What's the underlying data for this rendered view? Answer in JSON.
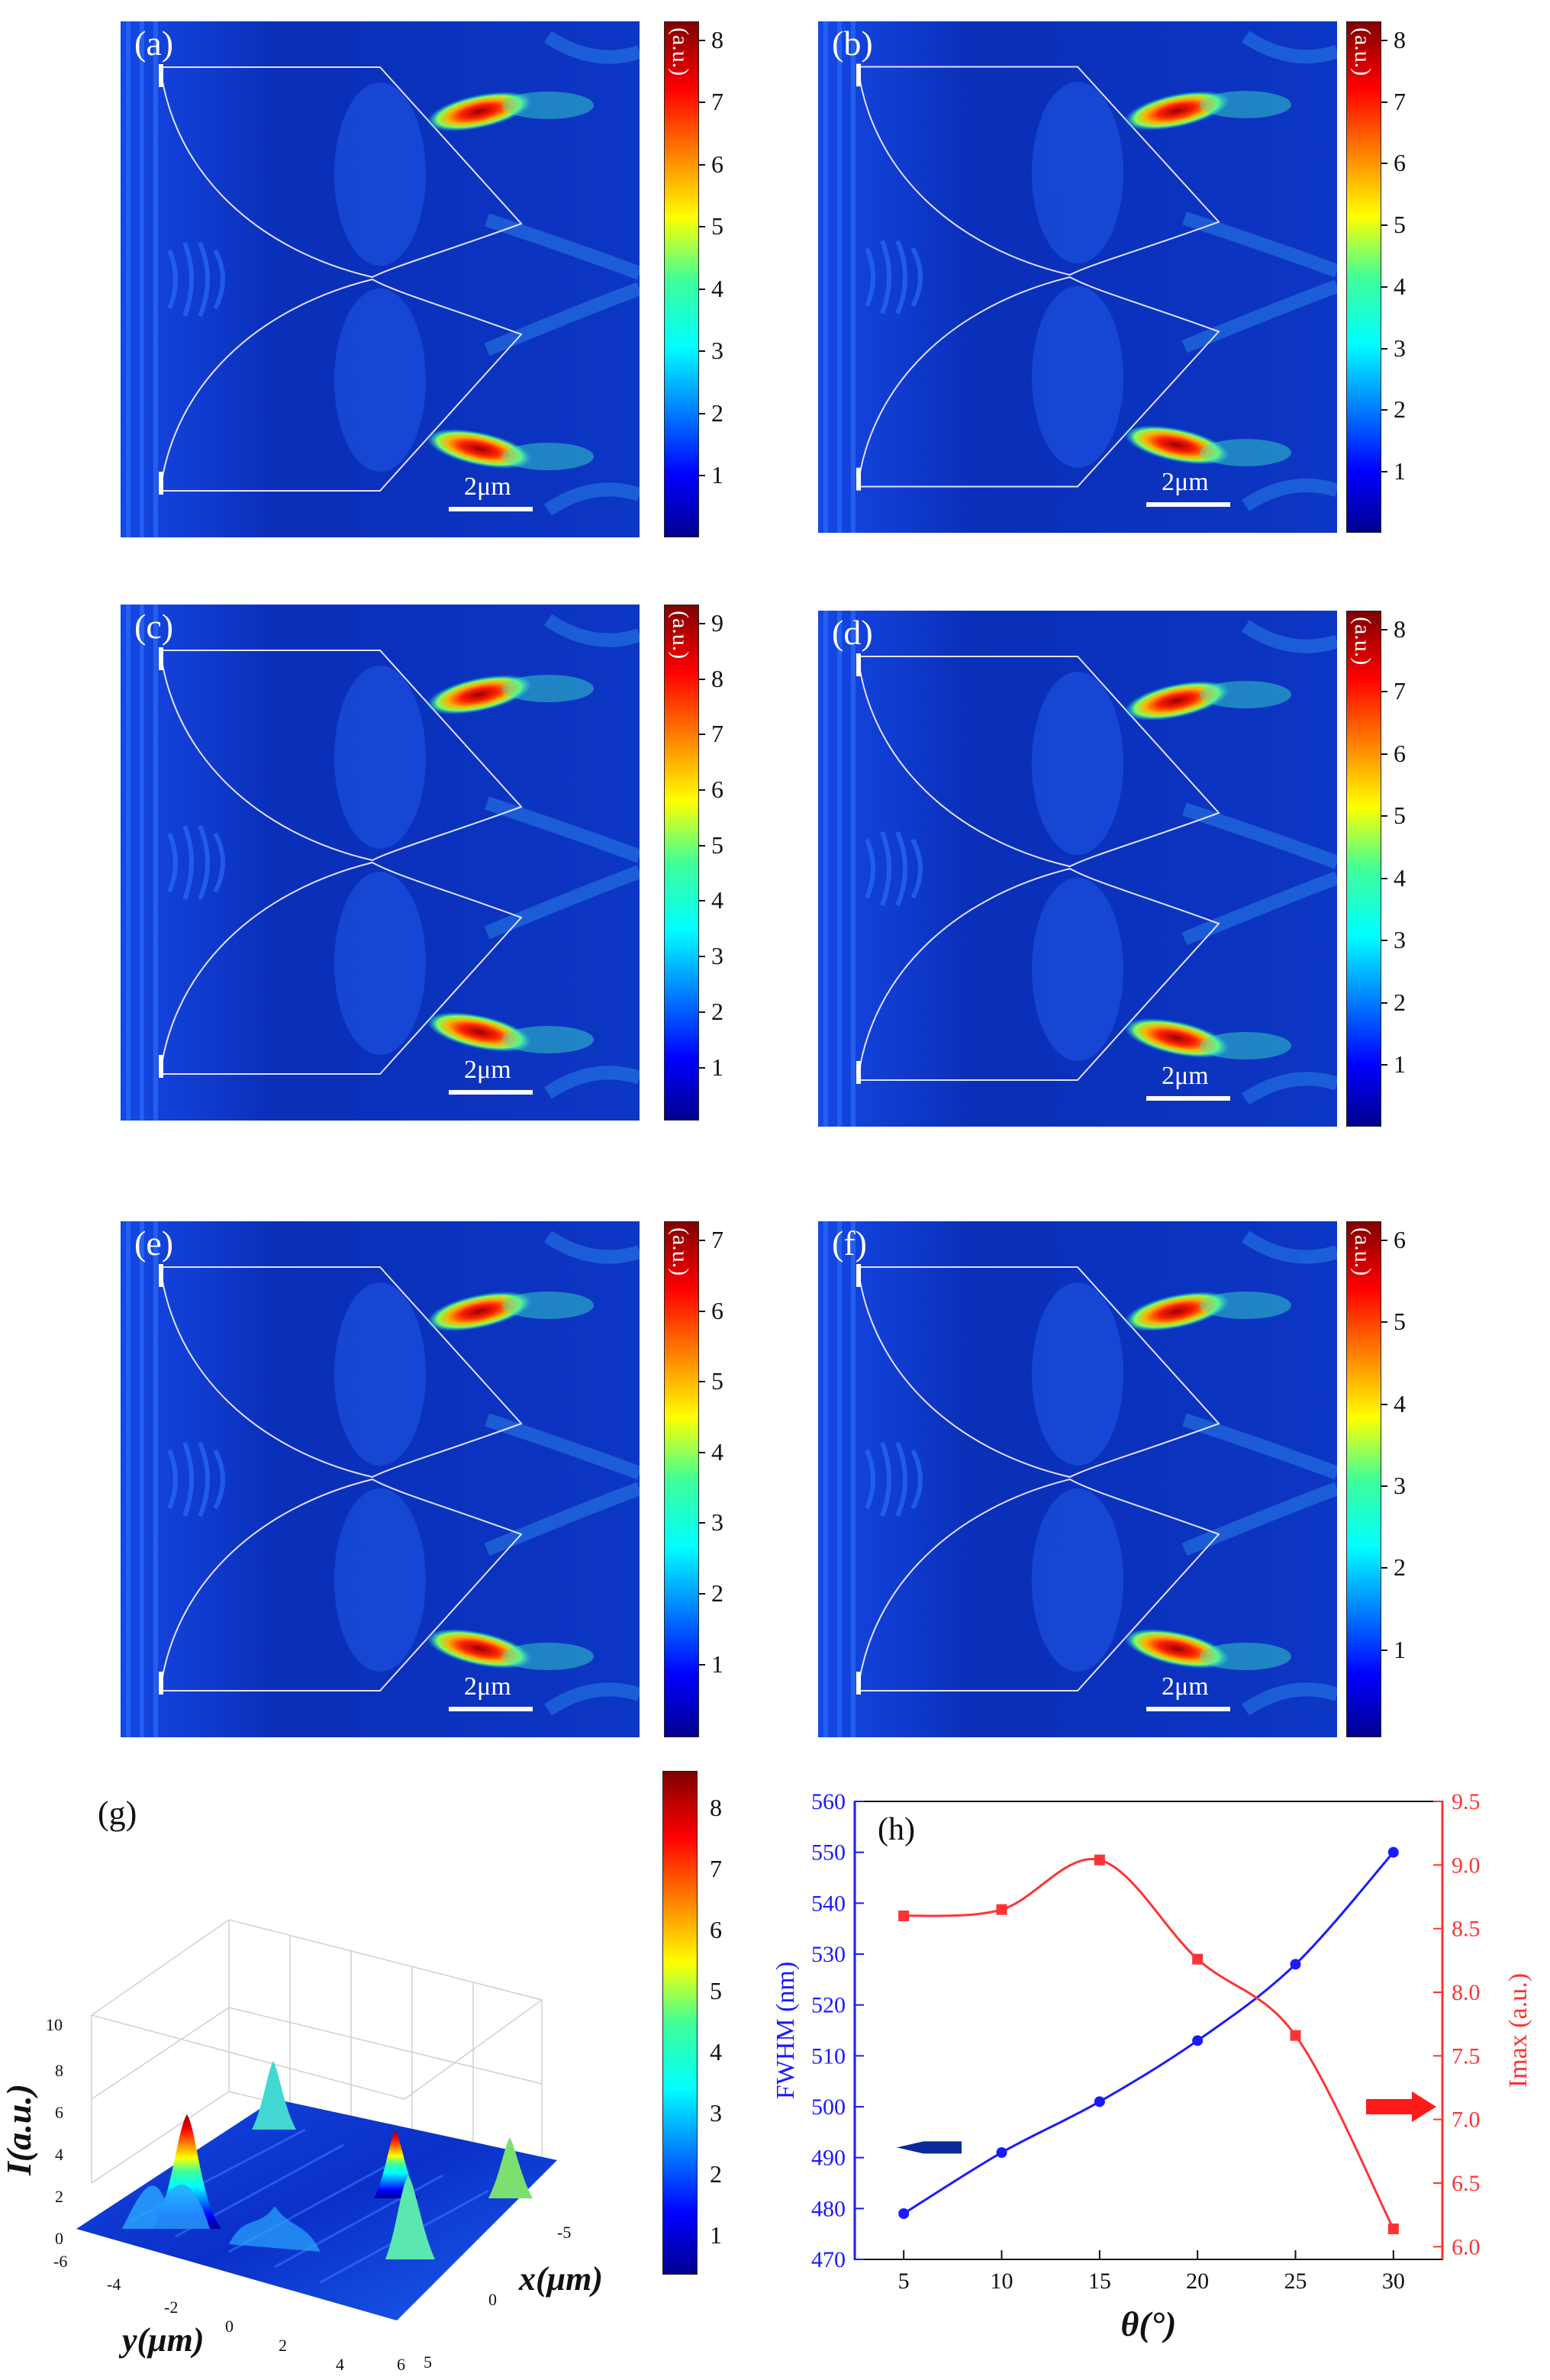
{
  "colorbar_unit": "(a.u.)",
  "scale_bar": "2μm",
  "panels": [
    {
      "label": "(a)",
      "cbar_ticks": [
        "8",
        "7",
        "6",
        "5",
        "4",
        "3",
        "2",
        "1"
      ]
    },
    {
      "label": "(b)",
      "cbar_ticks": [
        "8",
        "7",
        "6",
        "5",
        "4",
        "3",
        "2",
        "1"
      ]
    },
    {
      "label": "(c)",
      "cbar_ticks": [
        "9",
        "8",
        "7",
        "6",
        "5",
        "4",
        "3",
        "2",
        "1"
      ]
    },
    {
      "label": "(d)",
      "cbar_ticks": [
        "8",
        "7",
        "6",
        "5",
        "4",
        "3",
        "2",
        "1"
      ]
    },
    {
      "label": "(e)",
      "cbar_ticks": [
        "7",
        "6",
        "5",
        "4",
        "3",
        "2",
        "1"
      ]
    },
    {
      "label": "(f)",
      "cbar_ticks": [
        "6",
        "5",
        "4",
        "3",
        "2",
        "1"
      ]
    }
  ],
  "panel_g": {
    "label": "(g)",
    "zlabel": "I(a.u.)",
    "xlabel": "x(μm)",
    "ylabel": "y(μm)",
    "z_ticks": [
      "10",
      "8",
      "6",
      "4",
      "2",
      "0"
    ],
    "y_ticks": [
      "-6",
      "-4",
      "-2",
      "0",
      "2",
      "4",
      "6"
    ],
    "x_ticks": [
      "-5",
      "0",
      "5"
    ],
    "cbar_ticks": [
      "8",
      "7",
      "6",
      "5",
      "4",
      "3",
      "2",
      "1"
    ]
  },
  "chart_data": {
    "type": "line",
    "label": "(h)",
    "xlabel": "θ(°)",
    "ylabel_left": "FWHM (nm)",
    "ylabel_right": "Imax (a.u.)",
    "x": [
      5,
      10,
      15,
      20,
      25,
      30
    ],
    "x_ticks": [
      5,
      10,
      15,
      20,
      25,
      30
    ],
    "xlim": [
      2.5,
      32.5
    ],
    "ylim_left": [
      470,
      560
    ],
    "ylim_right": [
      5.9,
      9.5
    ],
    "yticks_left": [
      470,
      480,
      490,
      500,
      510,
      520,
      530,
      540,
      550,
      560
    ],
    "yticks_right": [
      "6.0",
      "6.5",
      "7.0",
      "7.5",
      "8.0",
      "8.5",
      "9.0",
      "9.5"
    ],
    "series": [
      {
        "name": "FWHM",
        "axis": "left",
        "color": "#1a1aff",
        "values": [
          479,
          491,
          501,
          513,
          528,
          550
        ]
      },
      {
        "name": "Imax",
        "axis": "right",
        "color": "#ff3333",
        "values": [
          8.6,
          8.65,
          9.04,
          8.26,
          7.66,
          6.14
        ]
      }
    ]
  }
}
